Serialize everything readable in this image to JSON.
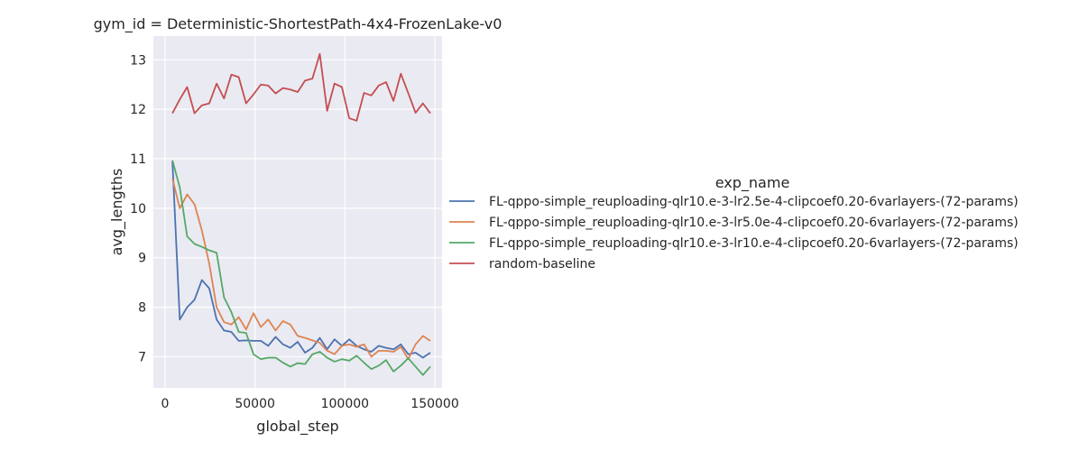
{
  "chart_data": {
    "type": "line",
    "title": "gym_id = Deterministic-ShortestPath-4x4-FrozenLake-v0",
    "xlabel": "global_step",
    "ylabel": "avg_lengths",
    "xlim": [
      -6500,
      154000
    ],
    "ylim": [
      6.37,
      13.48
    ],
    "x_ticks": [
      0,
      50000,
      100000,
      150000
    ],
    "y_ticks": [
      7,
      8,
      9,
      10,
      11,
      12,
      13
    ],
    "grid": true,
    "legend_title": "exp_name",
    "legend_position": "right",
    "x": [
      4096,
      8192,
      12288,
      16384,
      20480,
      24576,
      28672,
      32768,
      36864,
      40960,
      45056,
      49152,
      53248,
      57344,
      61440,
      65536,
      69632,
      73728,
      77824,
      81920,
      86016,
      90112,
      94208,
      98304,
      102400,
      106496,
      110592,
      114688,
      118784,
      122880,
      126976,
      131072,
      135168,
      139264,
      143360,
      147456
    ],
    "series": [
      {
        "name": "FL-qppo-simple_reuploading-qlr10.e-3-lr2.5e-4-clipcoef0.20-6varlayers-(72-params)",
        "color": "#4c72b0",
        "values": [
          10.95,
          7.75,
          8.0,
          8.15,
          8.55,
          8.38,
          7.75,
          7.53,
          7.5,
          7.32,
          7.33,
          7.32,
          7.32,
          7.22,
          7.4,
          7.25,
          7.18,
          7.3,
          7.08,
          7.18,
          7.38,
          7.15,
          7.35,
          7.22,
          7.35,
          7.22,
          7.15,
          7.1,
          7.22,
          7.18,
          7.15,
          7.25,
          7.05,
          7.08,
          6.98,
          7.08
        ]
      },
      {
        "name": "FL-qppo-simple_reuploading-qlr10.e-3-lr5.0e-4-clipcoef0.20-6varlayers-(72-params)",
        "color": "#dd8452",
        "values": [
          10.6,
          10.0,
          10.28,
          10.08,
          9.55,
          8.88,
          8.0,
          7.7,
          7.65,
          7.8,
          7.55,
          7.88,
          7.6,
          7.75,
          7.53,
          7.72,
          7.65,
          7.42,
          7.38,
          7.33,
          7.28,
          7.12,
          7.05,
          7.22,
          7.25,
          7.2,
          7.25,
          7.0,
          7.12,
          7.12,
          7.1,
          7.2,
          6.95,
          7.25,
          7.42,
          7.32
        ]
      },
      {
        "name": "FL-qppo-simple_reuploading-qlr10.e-3-lr10.e-4-clipcoef0.20-6varlayers-(72-params)",
        "color": "#55a868",
        "values": [
          10.97,
          10.42,
          9.43,
          9.28,
          9.22,
          9.15,
          9.1,
          8.2,
          7.9,
          7.5,
          7.48,
          7.05,
          6.95,
          6.98,
          6.98,
          6.88,
          6.8,
          6.87,
          6.85,
          7.05,
          7.1,
          6.98,
          6.9,
          6.95,
          6.92,
          7.02,
          6.88,
          6.75,
          6.82,
          6.93,
          6.7,
          6.82,
          6.97,
          6.8,
          6.63,
          6.8
        ]
      },
      {
        "name": "random-baseline",
        "color": "#c44e52",
        "values": [
          11.92,
          12.2,
          12.45,
          11.92,
          12.08,
          12.12,
          12.52,
          12.22,
          12.7,
          12.65,
          12.12,
          12.3,
          12.5,
          12.48,
          12.32,
          12.43,
          12.4,
          12.35,
          12.58,
          12.62,
          13.12,
          11.97,
          12.52,
          12.45,
          11.82,
          11.77,
          12.33,
          12.28,
          12.48,
          12.55,
          12.17,
          12.72,
          12.33,
          11.93,
          12.12,
          11.92
        ]
      }
    ]
  }
}
